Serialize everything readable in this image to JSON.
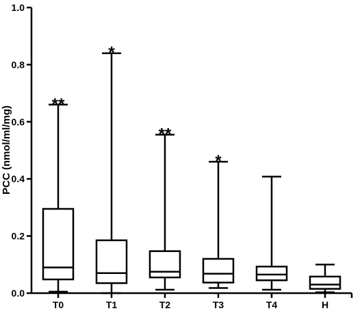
{
  "chart_data": {
    "type": "box",
    "ylabel": "PCC (nmol/ml/mg)",
    "xlabel": "",
    "ylim": [
      0,
      1.0
    ],
    "yticks": [
      "0.0",
      "0.2",
      "0.4",
      "0.6",
      "0.8",
      "1.0"
    ],
    "ytick_values": [
      0,
      0.2,
      0.4,
      0.6,
      0.8,
      1.0
    ],
    "grid": false,
    "categories": [
      "T0",
      "T1",
      "T2",
      "T3",
      "T4",
      "H"
    ],
    "boxes": [
      {
        "min": 0.005,
        "q1": 0.048,
        "median": 0.09,
        "q3": 0.295,
        "max": 0.66,
        "annotation": "**"
      },
      {
        "min": 0.0,
        "q1": 0.035,
        "median": 0.07,
        "q3": 0.185,
        "max": 0.84,
        "annotation": "*"
      },
      {
        "min": 0.012,
        "q1": 0.055,
        "median": 0.075,
        "q3": 0.147,
        "max": 0.555,
        "annotation": "**"
      },
      {
        "min": 0.018,
        "q1": 0.037,
        "median": 0.068,
        "q3": 0.12,
        "max": 0.46,
        "annotation": "*"
      },
      {
        "min": 0.012,
        "q1": 0.045,
        "median": 0.065,
        "q3": 0.093,
        "max": 0.408,
        "annotation": ""
      },
      {
        "min": 0.003,
        "q1": 0.015,
        "median": 0.03,
        "q3": 0.058,
        "max": 0.1,
        "annotation": ""
      }
    ]
  }
}
